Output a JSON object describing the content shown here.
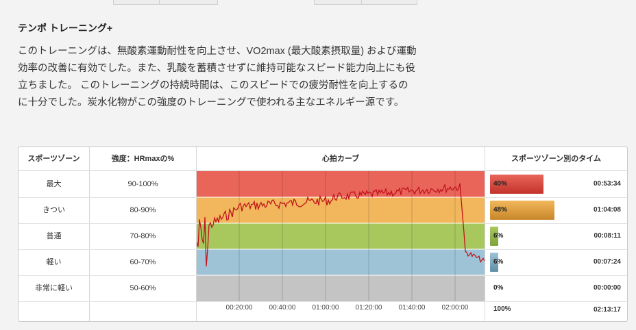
{
  "heading": "テンポ トレーニング+",
  "description": "このトレーニングは、無酸素運動耐性を向上させ、VO2max (最大酸素摂取量) および運動効率の改善に有効でした。また、乳酸を蓄積させずに維持可能なスピード能力向上にも役立ちました。 このトレーニングの持続時間は、このスピードでの疲労耐性を向上するのに十分でした。炭水化物がこの強度のトレーニングで使われる主なエネルギー源です。",
  "table": {
    "headers": {
      "zone": "スポーツゾーン",
      "intensity": "強度：HRmaxの%",
      "curve": "心拍カーブ",
      "time_per_zone": "スポーツゾーン別のタイム"
    },
    "rows": [
      {
        "zone": "最大",
        "intensity": "90-100%",
        "percent": "40%",
        "percent_value": 40,
        "time": "00:53:34",
        "color": "#e9655a",
        "bar_color": "#c2332b"
      },
      {
        "zone": "きつい",
        "intensity": "80-90%",
        "percent": "48%",
        "percent_value": 48,
        "time": "01:04:08",
        "color": "#f2b75c",
        "bar_color": "#c8862a"
      },
      {
        "zone": "普通",
        "intensity": "70-80%",
        "percent": "6%",
        "percent_value": 6,
        "time": "00:08:11",
        "color": "#a8c85e",
        "bar_color": "#7ea33a"
      },
      {
        "zone": "軽い",
        "intensity": "60-70%",
        "percent": "6%",
        "percent_value": 6,
        "time": "00:07:24",
        "color": "#9fc3d6",
        "bar_color": "#5d8ea6"
      },
      {
        "zone": "非常に軽い",
        "intensity": "50-60%",
        "percent": "0%",
        "percent_value": 0,
        "time": "00:00:00",
        "color": "#c4c4c4",
        "bar_color": "#999999"
      }
    ],
    "total": {
      "percent": "100%",
      "time": "02:13:17"
    },
    "time_ticks": [
      "00:20:00",
      "00:40:00",
      "01:00:00",
      "01:20:00",
      "01:40:00",
      "02:00:00"
    ]
  }
}
